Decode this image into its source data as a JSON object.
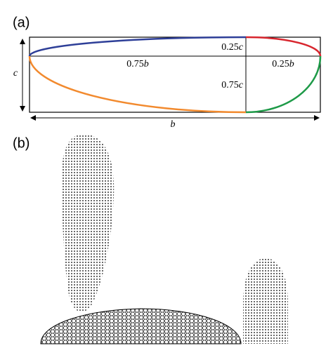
{
  "panel_a": {
    "label": "(a)",
    "height_label": "c",
    "width_label": "b",
    "upper_height": {
      "coefficient": "0.25",
      "variable": "c"
    },
    "lower_height": {
      "coefficient": "0.75",
      "variable": "c"
    },
    "left_width": {
      "coefficient": "0.75",
      "variable": "b"
    },
    "right_width": {
      "coefficient": "0.25",
      "variable": "b"
    }
  },
  "panel_b": {
    "label": "(b)"
  }
}
